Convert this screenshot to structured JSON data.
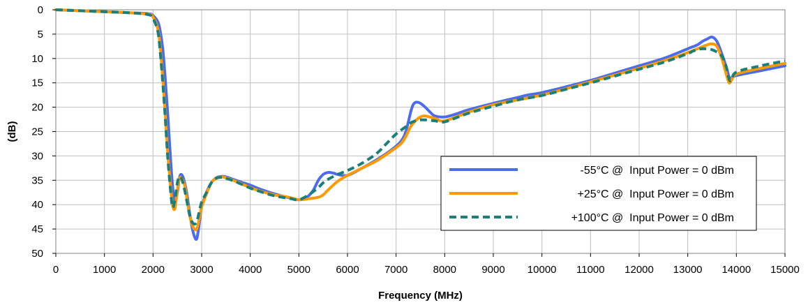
{
  "chart_data": {
    "type": "line",
    "xlabel": "Frequency (MHz)",
    "ylabel": "(dB)",
    "xlim": [
      0,
      15000
    ],
    "ylim": [
      0,
      50
    ],
    "y_inverted": true,
    "xticks": [
      0,
      1000,
      2000,
      3000,
      4000,
      5000,
      6000,
      7000,
      8000,
      9000,
      10000,
      11000,
      12000,
      13000,
      14000,
      15000
    ],
    "yticks": [
      0,
      5,
      10,
      15,
      20,
      25,
      30,
      35,
      40,
      45,
      50
    ],
    "grid": true,
    "legend_position": "right",
    "colors": {
      "s1": "#4a6cf0",
      "s2": "#ff9900",
      "s3": "#1a7f78",
      "grid": "#c0c0c0",
      "plot_border": "#808080"
    },
    "series": [
      {
        "name": "-55°C @  Input Power = 0 dBm",
        "style": "solid",
        "x": [
          0,
          500,
          1000,
          1500,
          1900,
          2000,
          2100,
          2150,
          2200,
          2250,
          2300,
          2350,
          2400,
          2450,
          2500,
          2550,
          2600,
          2650,
          2700,
          2750,
          2800,
          2850,
          2900,
          2950,
          3000,
          3100,
          3200,
          3300,
          3400,
          3500,
          3700,
          4000,
          4200,
          4500,
          4800,
          5000,
          5100,
          5200,
          5300,
          5400,
          5500,
          5600,
          5700,
          5800,
          6000,
          6300,
          6600,
          6900,
          7100,
          7200,
          7300,
          7350,
          7400,
          7450,
          7500,
          7600,
          7700,
          7800,
          8000,
          8200,
          8500,
          9000,
          9500,
          9700,
          10000,
          10500,
          11000,
          11500,
          12000,
          12500,
          13000,
          13200,
          13300,
          13400,
          13500,
          13600,
          13700,
          13800,
          13850,
          13900,
          14000,
          14500,
          15000
        ],
        "y": [
          0,
          0.2,
          0.4,
          0.6,
          0.8,
          1.2,
          2.5,
          4.5,
          8,
          14,
          21,
          29,
          36,
          39.5,
          37.5,
          34.2,
          34,
          35.5,
          38,
          41.5,
          44.5,
          46.5,
          47,
          44,
          40.5,
          37.5,
          35.5,
          34.5,
          34.2,
          34.3,
          35,
          36,
          36.8,
          37.8,
          38.6,
          39,
          38.8,
          38.2,
          37,
          35,
          33.8,
          33.4,
          33.5,
          33.8,
          34,
          32.5,
          30.8,
          28.8,
          27,
          25,
          21,
          19.5,
          19,
          19,
          19.2,
          20,
          21,
          21.8,
          22,
          21.5,
          20.5,
          19.2,
          18,
          17.5,
          17,
          15.8,
          14.5,
          13,
          11.5,
          10,
          8,
          7.2,
          6.5,
          6,
          5.6,
          6.5,
          9,
          12,
          13.8,
          14,
          13.5,
          12.5,
          11.5
        ]
      },
      {
        "name": "+25°C @  Input Power = 0 dBm",
        "style": "solid",
        "x": [
          0,
          500,
          1000,
          1500,
          1900,
          2000,
          2100,
          2150,
          2200,
          2250,
          2300,
          2350,
          2400,
          2450,
          2500,
          2550,
          2600,
          2650,
          2700,
          2750,
          2800,
          2850,
          2900,
          2950,
          3000,
          3100,
          3200,
          3300,
          3400,
          3500,
          3700,
          4000,
          4200,
          4500,
          4800,
          5000,
          5200,
          5400,
          5500,
          5600,
          5800,
          6000,
          6300,
          6600,
          6900,
          7100,
          7200,
          7300,
          7400,
          7500,
          7600,
          7800,
          8000,
          8500,
          9000,
          9500,
          10000,
          10500,
          11000,
          11500,
          12000,
          12500,
          13000,
          13200,
          13400,
          13500,
          13600,
          13700,
          13800,
          13850,
          13900,
          14000,
          14500,
          15000
        ],
        "y": [
          0,
          0.2,
          0.4,
          0.6,
          0.9,
          1.5,
          4,
          8,
          14,
          21,
          29,
          35,
          40,
          40.8,
          37,
          34.5,
          34.8,
          36,
          39,
          42,
          44,
          45,
          45,
          43,
          40.5,
          37.8,
          35.5,
          34.6,
          34.3,
          34.5,
          35.2,
          36.5,
          37.2,
          38,
          38.5,
          39,
          38.8,
          38.5,
          38,
          37,
          35.2,
          34,
          32.5,
          31,
          29,
          27.5,
          26,
          24,
          22.8,
          22,
          21.8,
          22.3,
          22.8,
          21,
          19.5,
          18.5,
          17.5,
          16.2,
          14.8,
          13.4,
          12,
          10.5,
          8.8,
          8,
          7.2,
          7,
          7.5,
          10,
          13.5,
          15,
          14.5,
          13.2,
          12,
          11
        ]
      },
      {
        "name": "+100°C @  Input Power = 0 dBm",
        "style": "dashed",
        "x": [
          0,
          500,
          1000,
          1500,
          1900,
          2000,
          2100,
          2150,
          2200,
          2250,
          2300,
          2350,
          2400,
          2450,
          2500,
          2550,
          2600,
          2650,
          2700,
          2750,
          2800,
          2850,
          2900,
          2950,
          3000,
          3100,
          3200,
          3300,
          3400,
          3500,
          3700,
          4000,
          4200,
          4500,
          4800,
          5000,
          5200,
          5400,
          5500,
          5600,
          5800,
          6000,
          6300,
          6600,
          6800,
          7000,
          7200,
          7300,
          7400,
          7500,
          7600,
          7800,
          8000,
          8500,
          9000,
          9500,
          10000,
          10500,
          11000,
          11500,
          12000,
          12500,
          13000,
          13100,
          13200,
          13300,
          13500,
          13700,
          13800,
          13850,
          13900,
          14000,
          14500,
          15000
        ],
        "y": [
          0,
          0.2,
          0.4,
          0.6,
          1,
          1.8,
          4.5,
          9,
          15,
          22,
          30,
          36,
          40.5,
          39,
          35.5,
          34.2,
          35,
          37,
          39.5,
          42,
          43.5,
          44,
          43.5,
          41.5,
          39.5,
          37.5,
          35.5,
          34.6,
          34.4,
          34.6,
          35.3,
          36.6,
          37.3,
          38.2,
          38.7,
          39,
          38,
          36.5,
          35.5,
          34.8,
          33.8,
          33,
          31.5,
          29.5,
          27.5,
          25.5,
          24,
          23.2,
          22.8,
          22.6,
          22.6,
          22.8,
          23,
          21.2,
          19.8,
          18.5,
          17.6,
          16.3,
          15,
          13.6,
          12.2,
          10.8,
          9,
          8.5,
          8.2,
          8,
          8.2,
          9.5,
          12,
          14.2,
          14.5,
          12.8,
          11.5,
          10.5
        ]
      }
    ]
  }
}
